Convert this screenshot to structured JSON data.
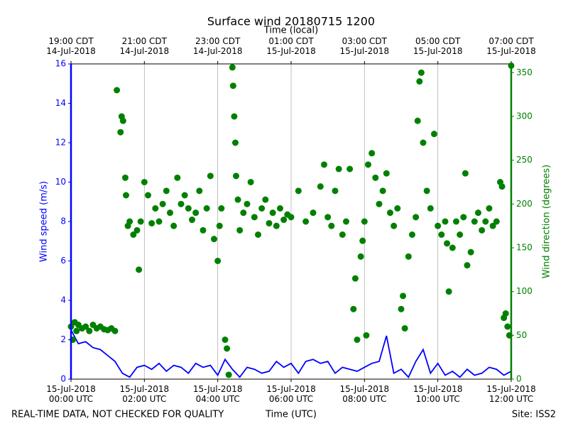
{
  "chart_data": {
    "type": "line-scatter",
    "title": "Surface wind 20180715 1200",
    "x2_label": "Time (local)",
    "xlabel": "Time (UTC)",
    "ylabel": "Wind speed (m/s)",
    "y2label": "Wind direction (degrees)",
    "note_left": "REAL-TIME DATA, NOT CHECKED FOR QUALITY",
    "note_right": "Site: ISS2",
    "xlim": [
      0,
      12
    ],
    "xticks": [
      {
        "value": 0,
        "label": "15-Jul-2018\n00:00 UTC"
      },
      {
        "value": 2,
        "label": "15-Jul-2018\n02:00 UTC"
      },
      {
        "value": 4,
        "label": "15-Jul-2018\n04:00 UTC"
      },
      {
        "value": 6,
        "label": "15-Jul-2018\n06:00 UTC"
      },
      {
        "value": 8,
        "label": "15-Jul-2018\n08:00 UTC"
      },
      {
        "value": 10,
        "label": "15-Jul-2018\n10:00 UTC"
      },
      {
        "value": 12,
        "label": "15-Jul-2018\n12:00 UTC"
      }
    ],
    "x2ticks": [
      {
        "value": 0,
        "label": "19:00 CDT\n14-Jul-2018"
      },
      {
        "value": 2,
        "label": "21:00 CDT\n14-Jul-2018"
      },
      {
        "value": 4,
        "label": "23:00 CDT\n14-Jul-2018"
      },
      {
        "value": 6,
        "label": "01:00 CDT\n15-Jul-2018"
      },
      {
        "value": 8,
        "label": "03:00 CDT\n15-Jul-2018"
      },
      {
        "value": 10,
        "label": "05:00 CDT\n15-Jul-2018"
      },
      {
        "value": 12,
        "label": "07:00 CDT\n15-Jul-2018"
      }
    ],
    "ylim": [
      0,
      16
    ],
    "yticks": [
      0,
      2,
      4,
      6,
      8,
      10,
      12,
      14,
      16
    ],
    "y2lim": [
      0,
      360
    ],
    "y2ticks": [
      0,
      50,
      100,
      150,
      200,
      250,
      300,
      350
    ],
    "grid": true,
    "series": [
      {
        "kind": "line",
        "color": "#0000ff",
        "x": [
          0,
          0.2,
          0.4,
          0.6,
          0.8,
          1,
          1.2,
          1.4,
          1.6,
          1.8,
          2,
          2.2,
          2.4,
          2.6,
          2.8,
          3,
          3.2,
          3.4,
          3.6,
          3.8,
          4,
          4.2,
          4.4,
          4.6,
          4.8,
          5,
          5.2,
          5.4,
          5.6,
          5.8,
          6,
          6.2,
          6.4,
          6.6,
          6.8,
          7,
          7.2,
          7.4,
          7.6,
          7.8,
          8,
          8.2,
          8.4,
          8.6,
          8.8,
          9,
          9.2,
          9.4,
          9.6,
          9.8,
          10,
          10.2,
          10.4,
          10.6,
          10.8,
          11,
          11.2,
          11.4,
          11.6,
          11.8,
          12
        ],
        "values": [
          2.5,
          1.8,
          1.9,
          1.6,
          1.5,
          1.2,
          0.9,
          0.3,
          0.1,
          0.6,
          0.7,
          0.5,
          0.8,
          0.4,
          0.7,
          0.6,
          0.3,
          0.8,
          0.6,
          0.7,
          0.2,
          1.0,
          0.5,
          0.1,
          0.6,
          0.5,
          0.3,
          0.4,
          0.9,
          0.6,
          0.8,
          0.3,
          0.9,
          1.0,
          0.8,
          0.9,
          0.3,
          0.6,
          0.5,
          0.4,
          0.6,
          0.8,
          0.9,
          2.2,
          0.3,
          0.5,
          0.1,
          0.9,
          1.5,
          0.3,
          0.8,
          0.2,
          0.4,
          0.1,
          0.5,
          0.2,
          0.3,
          0.6,
          0.5,
          0.2,
          0.4
        ]
      },
      {
        "kind": "scatter",
        "axis": "y2",
        "color": "#008000",
        "x": [
          0,
          0.05,
          0.1,
          0.15,
          0.2,
          0.3,
          0.4,
          0.5,
          0.6,
          0.7,
          0.8,
          0.9,
          1,
          1.1,
          1.2,
          1.25,
          1.35,
          1.38,
          1.42,
          1.48,
          1.5,
          1.55,
          1.6,
          1.7,
          1.8,
          1.85,
          1.9,
          2,
          2.1,
          2.2,
          2.3,
          2.4,
          2.5,
          2.6,
          2.7,
          2.8,
          2.9,
          3,
          3.1,
          3.2,
          3.3,
          3.4,
          3.5,
          3.6,
          3.7,
          3.8,
          3.9,
          4,
          4.05,
          4.1,
          4.2,
          4.25,
          4.3,
          4.4,
          4.42,
          4.45,
          4.48,
          4.5,
          4.55,
          4.6,
          4.7,
          4.8,
          4.9,
          5,
          5.1,
          5.2,
          5.3,
          5.4,
          5.5,
          5.6,
          5.7,
          5.8,
          5.9,
          6,
          6.2,
          6.4,
          6.6,
          6.8,
          6.9,
          7,
          7.1,
          7.2,
          7.3,
          7.4,
          7.5,
          7.6,
          7.7,
          7.75,
          7.8,
          7.9,
          7.95,
          8,
          8.05,
          8.1,
          8.2,
          8.3,
          8.4,
          8.5,
          8.6,
          8.7,
          8.8,
          8.9,
          9,
          9.05,
          9.1,
          9.2,
          9.3,
          9.4,
          9.45,
          9.5,
          9.55,
          9.6,
          9.7,
          9.8,
          9.9,
          10,
          10.1,
          10.2,
          10.25,
          10.3,
          10.4,
          10.5,
          10.6,
          10.7,
          10.75,
          10.8,
          10.9,
          11,
          11.1,
          11.2,
          11.3,
          11.4,
          11.5,
          11.6,
          11.7,
          11.75,
          11.8,
          11.85,
          11.9,
          11.95,
          12
        ],
        "values": [
          60,
          45,
          65,
          55,
          62,
          58,
          60,
          55,
          62,
          58,
          60,
          57,
          56,
          58,
          55,
          330,
          282,
          300,
          295,
          230,
          210,
          175,
          180,
          165,
          170,
          125,
          180,
          225,
          210,
          178,
          195,
          180,
          200,
          215,
          190,
          175,
          230,
          200,
          210,
          195,
          182,
          190,
          215,
          170,
          195,
          232,
          160,
          135,
          175,
          195,
          45,
          35,
          5,
          356,
          335,
          300,
          270,
          232,
          205,
          170,
          190,
          200,
          225,
          185,
          165,
          195,
          205,
          178,
          190,
          175,
          195,
          182,
          188,
          185,
          215,
          180,
          190,
          220,
          245,
          185,
          175,
          215,
          240,
          165,
          180,
          240,
          80,
          115,
          45,
          140,
          158,
          180,
          50,
          245,
          258,
          230,
          200,
          215,
          235,
          190,
          175,
          195,
          80,
          95,
          58,
          140,
          165,
          185,
          295,
          340,
          350,
          270,
          215,
          195,
          280,
          175,
          165,
          180,
          155,
          100,
          150,
          180,
          165,
          185,
          235,
          130,
          145,
          180,
          190,
          170,
          180,
          195,
          175,
          180,
          225,
          220,
          70,
          75,
          60,
          50,
          358
        ]
      }
    ]
  }
}
